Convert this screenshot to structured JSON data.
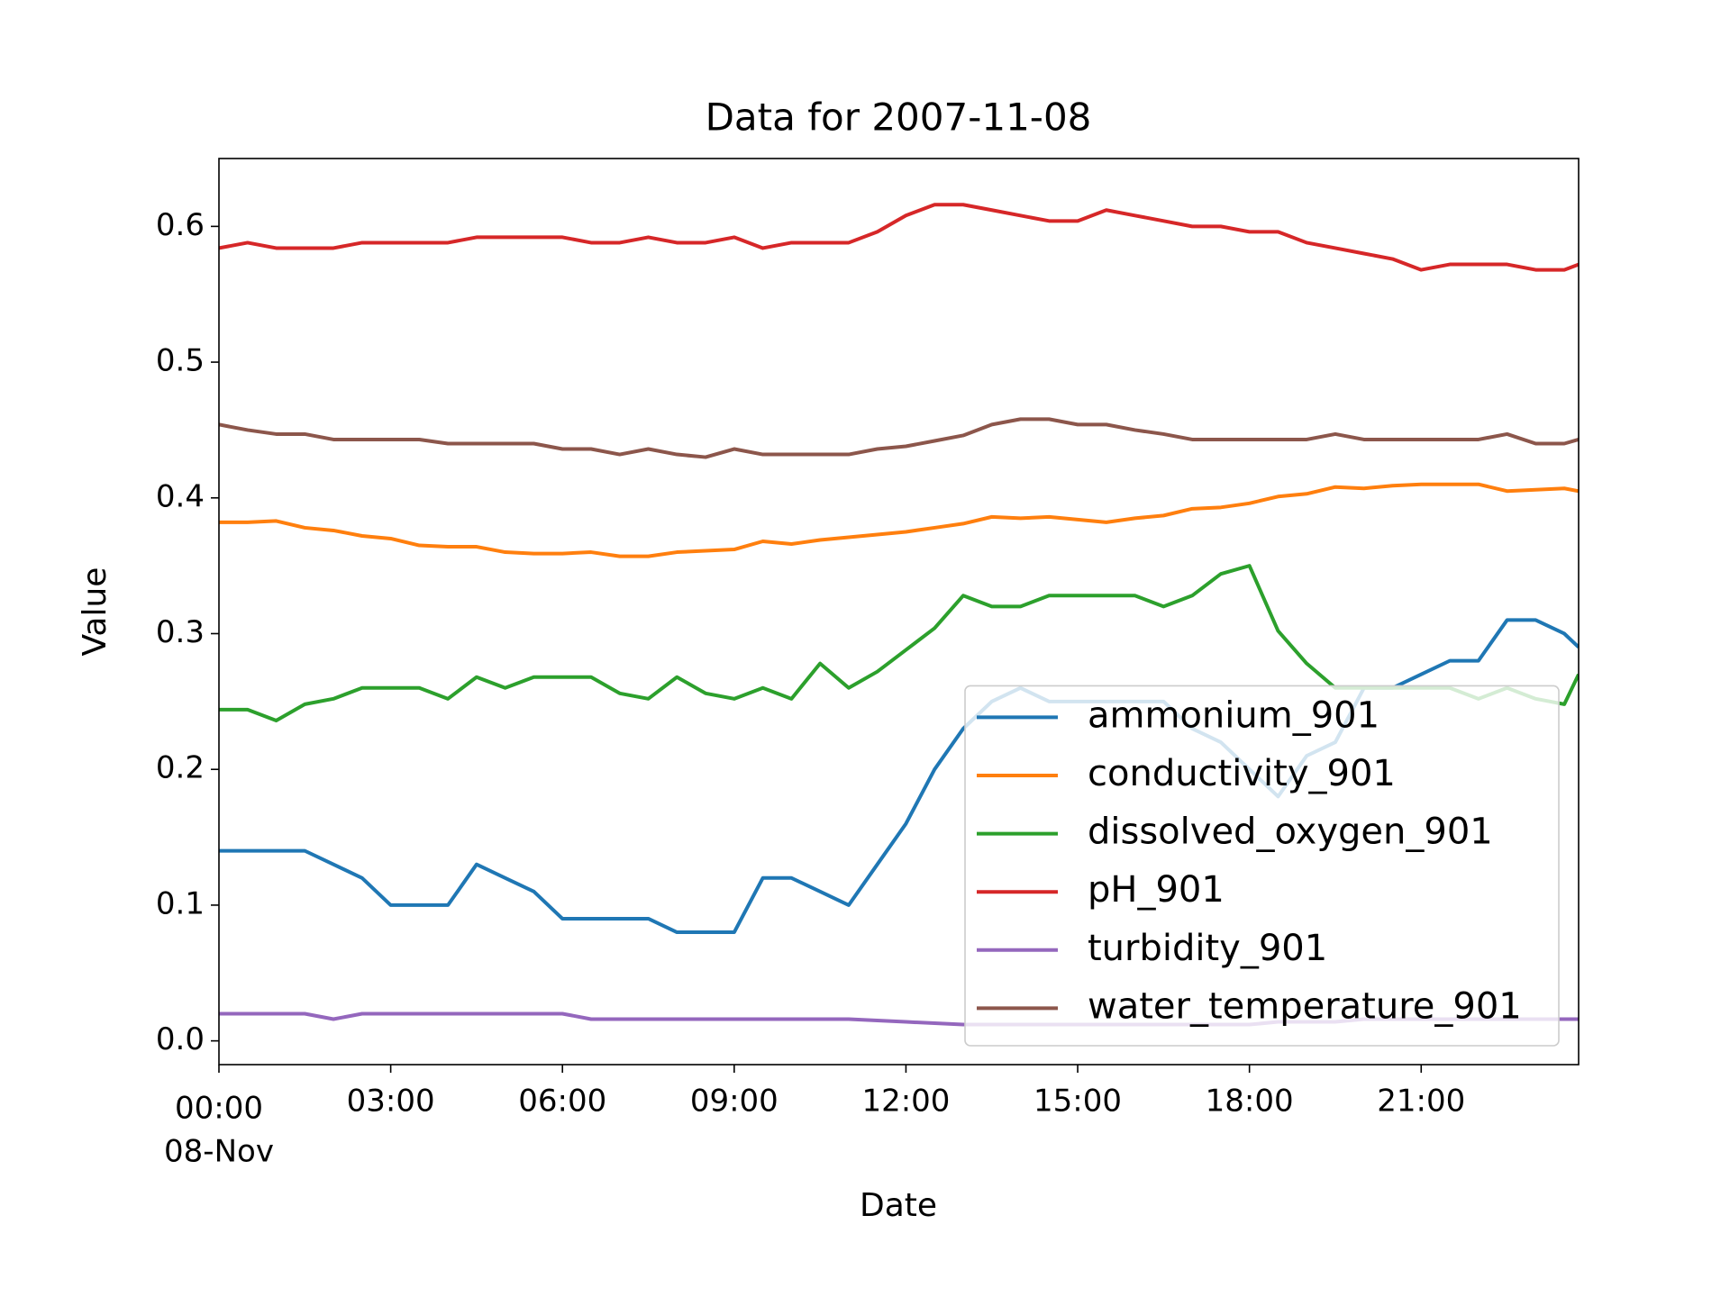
{
  "chart_data": {
    "type": "line",
    "title": "Data for 2007-11-08",
    "xlabel": "Date",
    "ylabel": "Value",
    "x_date_label": "08-Nov",
    "x": [
      0,
      0.5,
      1,
      1.5,
      2,
      2.5,
      3,
      3.5,
      4,
      4.5,
      5,
      5.5,
      6,
      6.5,
      7,
      7.5,
      8,
      8.5,
      9,
      9.5,
      10,
      10.5,
      11,
      11.5,
      12,
      12.5,
      13,
      13.5,
      14,
      14.5,
      15,
      15.5,
      16,
      16.5,
      17,
      17.5,
      18,
      18.5,
      19,
      19.5,
      20,
      20.5,
      21,
      21.5,
      22,
      22.5,
      23,
      23.5,
      23.75
    ],
    "xlim": [
      0,
      23.75
    ],
    "xticks": [
      {
        "value": 0,
        "label": "00:00"
      },
      {
        "value": 3,
        "label": "03:00"
      },
      {
        "value": 6,
        "label": "06:00"
      },
      {
        "value": 9,
        "label": "09:00"
      },
      {
        "value": 12,
        "label": "12:00"
      },
      {
        "value": 15,
        "label": "15:00"
      },
      {
        "value": 18,
        "label": "18:00"
      },
      {
        "value": 21,
        "label": "21:00"
      }
    ],
    "ylim": [
      -0.0175,
      0.65
    ],
    "yticks": [
      {
        "value": 0,
        "label": "0.0"
      },
      0.1,
      0.2,
      0.3,
      0.4,
      0.5,
      0.6
    ],
    "grid": false,
    "legend": "lower right",
    "series": [
      {
        "name": "ammonium_901",
        "color": "#1f77b4",
        "values": [
          0.14,
          0.14,
          0.14,
          0.14,
          0.13,
          0.12,
          0.1,
          0.1,
          0.1,
          0.13,
          0.12,
          0.11,
          0.09,
          0.09,
          0.09,
          0.09,
          0.08,
          0.08,
          0.08,
          0.12,
          0.12,
          0.11,
          0.1,
          0.13,
          0.16,
          0.2,
          0.23,
          0.25,
          0.26,
          0.25,
          0.25,
          0.25,
          0.25,
          0.25,
          0.23,
          0.22,
          0.2,
          0.18,
          0.21,
          0.22,
          0.26,
          0.26,
          0.27,
          0.28,
          0.28,
          0.31,
          0.31,
          0.3,
          0.29
        ]
      },
      {
        "name": "conductivity_901",
        "color": "#ff7f0e",
        "values": [
          0.382,
          0.382,
          0.383,
          0.378,
          0.376,
          0.372,
          0.37,
          0.365,
          0.364,
          0.364,
          0.36,
          0.359,
          0.359,
          0.36,
          0.357,
          0.357,
          0.36,
          0.361,
          0.362,
          0.368,
          0.366,
          0.369,
          0.371,
          0.373,
          0.375,
          0.378,
          0.381,
          0.386,
          0.385,
          0.386,
          0.384,
          0.382,
          0.385,
          0.387,
          0.392,
          0.393,
          0.396,
          0.401,
          0.403,
          0.408,
          0.407,
          0.409,
          0.41,
          0.41,
          0.41,
          0.405,
          0.406,
          0.407,
          0.405
        ]
      },
      {
        "name": "dissolved_oxygen_901",
        "color": "#2ca02c",
        "values": [
          0.244,
          0.244,
          0.236,
          0.248,
          0.252,
          0.26,
          0.26,
          0.26,
          0.252,
          0.268,
          0.26,
          0.268,
          0.268,
          0.268,
          0.256,
          0.252,
          0.268,
          0.256,
          0.252,
          0.26,
          0.252,
          0.278,
          0.26,
          0.272,
          0.288,
          0.304,
          0.328,
          0.32,
          0.32,
          0.328,
          0.328,
          0.328,
          0.328,
          0.32,
          0.328,
          0.344,
          0.35,
          0.302,
          0.278,
          0.26,
          0.26,
          0.26,
          0.26,
          0.26,
          0.252,
          0.26,
          0.252,
          0.248,
          0.27
        ]
      },
      {
        "name": "pH_901",
        "color": "#d62728",
        "values": [
          0.584,
          0.588,
          0.584,
          0.584,
          0.584,
          0.588,
          0.588,
          0.588,
          0.588,
          0.592,
          0.592,
          0.592,
          0.592,
          0.588,
          0.588,
          0.592,
          0.588,
          0.588,
          0.592,
          0.584,
          0.588,
          0.588,
          0.588,
          0.596,
          0.608,
          0.616,
          0.616,
          0.612,
          0.608,
          0.604,
          0.604,
          0.612,
          0.608,
          0.604,
          0.6,
          0.6,
          0.596,
          0.596,
          0.588,
          0.584,
          0.58,
          0.576,
          0.568,
          0.572,
          0.572,
          0.572,
          0.568,
          0.568,
          0.572
        ]
      },
      {
        "name": "turbidity_901",
        "color": "#9467bd",
        "values": [
          0.02,
          0.02,
          0.02,
          0.02,
          0.016,
          0.02,
          0.02,
          0.02,
          0.02,
          0.02,
          0.02,
          0.02,
          0.02,
          0.016,
          0.016,
          0.016,
          0.016,
          0.016,
          0.016,
          0.016,
          0.016,
          0.016,
          0.016,
          0.015,
          0.014,
          0.013,
          0.012,
          0.012,
          0.012,
          0.012,
          0.012,
          0.012,
          0.012,
          0.012,
          0.012,
          0.012,
          0.012,
          0.014,
          0.014,
          0.014,
          0.016,
          0.016,
          0.016,
          0.016,
          0.016,
          0.016,
          0.016,
          0.016,
          0.016
        ]
      },
      {
        "name": "water_temperature_901",
        "color": "#8c564b",
        "values": [
          0.454,
          0.45,
          0.447,
          0.447,
          0.443,
          0.443,
          0.443,
          0.443,
          0.44,
          0.44,
          0.44,
          0.44,
          0.436,
          0.436,
          0.432,
          0.436,
          0.432,
          0.43,
          0.436,
          0.432,
          0.432,
          0.432,
          0.432,
          0.436,
          0.438,
          0.442,
          0.446,
          0.454,
          0.458,
          0.458,
          0.454,
          0.454,
          0.45,
          0.447,
          0.443,
          0.443,
          0.443,
          0.443,
          0.443,
          0.447,
          0.443,
          0.443,
          0.443,
          0.443,
          0.443,
          0.447,
          0.44,
          0.44,
          0.443
        ]
      }
    ]
  }
}
